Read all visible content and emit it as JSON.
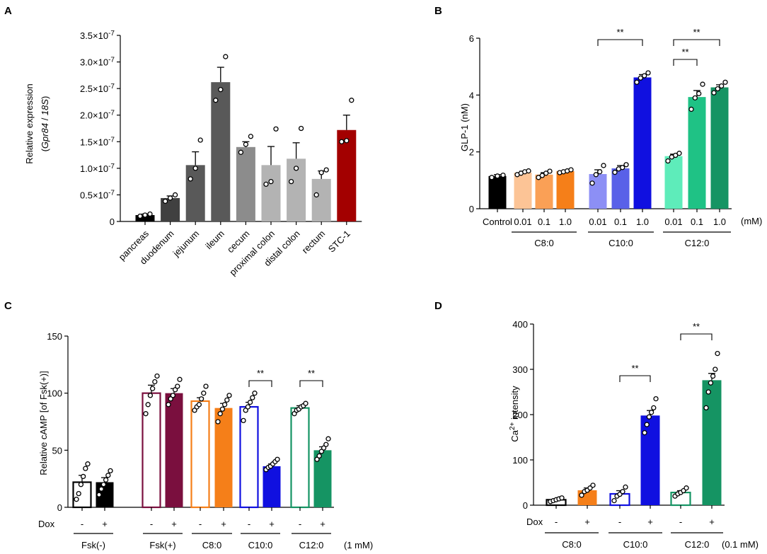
{
  "chart_data": [
    {
      "panel": "A",
      "type": "bar",
      "ylabel_line1": "Relative expression",
      "ylabel_line2_prefix": "(",
      "ylabel_gene": "Gpr84",
      "ylabel_sep": " / ",
      "ylabel_ref": "18S",
      "ylabel_line2_suffix": ")",
      "ylim": [
        0,
        3.5
      ],
      "yticks": [
        0,
        0.5,
        1.0,
        1.5,
        2.0,
        2.5,
        3.0,
        3.5
      ],
      "ytick_labels": [
        "0",
        "0.5×10",
        "1.0×10",
        "1.5×10",
        "2.0×10",
        "2.5×10",
        "3.0×10",
        "3.5×10"
      ],
      "ytick_exponent": "-7",
      "categories": [
        "pancreas",
        "duodenum",
        "jejunum",
        "ileum",
        "cecum",
        "proximal colon",
        "distal colon",
        "rectum",
        "STC-1"
      ],
      "values": [
        0.12,
        0.44,
        1.06,
        2.62,
        1.4,
        1.06,
        1.18,
        0.8,
        1.72
      ],
      "sem": [
        0.02,
        0.04,
        0.25,
        0.28,
        0.1,
        0.35,
        0.3,
        0.15,
        0.28
      ],
      "points": [
        [
          0.1,
          0.12,
          0.14
        ],
        [
          0.38,
          0.44,
          0.5
        ],
        [
          0.8,
          1.0,
          1.53
        ],
        [
          2.28,
          2.48,
          3.1
        ],
        [
          1.3,
          1.45,
          1.6
        ],
        [
          0.7,
          0.75,
          1.74
        ],
        [
          0.75,
          1.0,
          1.75
        ],
        [
          0.5,
          0.92,
          0.97
        ],
        [
          1.5,
          1.52,
          2.28
        ]
      ],
      "colors": [
        "#000000",
        "#404040",
        "#595959",
        "#595959",
        "#8c8c8c",
        "#b3b3b3",
        "#b3b3b3",
        "#b3b3b3",
        "#a30000"
      ]
    },
    {
      "panel": "B",
      "type": "bar",
      "ylabel": "GLP-1 (nM)",
      "ylim": [
        0,
        6
      ],
      "yticks": [
        0,
        2,
        4,
        6
      ],
      "ytick_labels": [
        "0",
        "2",
        "4",
        "6"
      ],
      "unit_note": "(mM)",
      "bars": [
        {
          "label": "Control",
          "value": 1.15,
          "sem": 0.05,
          "color": "#000000",
          "points": [
            1.1,
            1.15,
            1.18
          ]
        },
        {
          "label": "0.01",
          "value": 1.27,
          "sem": 0.05,
          "color": "#fcc496",
          "points": [
            1.2,
            1.25,
            1.3,
            1.33
          ]
        },
        {
          "label": "0.1",
          "value": 1.2,
          "sem": 0.07,
          "color": "#faa056",
          "points": [
            1.1,
            1.17,
            1.25,
            1.32
          ]
        },
        {
          "label": "1.0",
          "value": 1.32,
          "sem": 0.04,
          "color": "#f57f19",
          "points": [
            1.27,
            1.3,
            1.33,
            1.37
          ]
        },
        {
          "label": "0.01",
          "value": 1.22,
          "sem": 0.15,
          "color": "#8c8ff5",
          "points": [
            0.9,
            1.2,
            1.3,
            1.52
          ]
        },
        {
          "label": "0.1",
          "value": 1.42,
          "sem": 0.1,
          "color": "#5961e8",
          "points": [
            1.28,
            1.4,
            1.45,
            1.55
          ]
        },
        {
          "label": "1.0",
          "value": 4.62,
          "sem": 0.1,
          "color": "#1010e0",
          "points": [
            4.45,
            4.6,
            4.68,
            4.78
          ]
        },
        {
          "label": "0.01",
          "value": 1.85,
          "sem": 0.07,
          "color": "#5eecba",
          "points": [
            1.68,
            1.82,
            1.88,
            1.95
          ]
        },
        {
          "label": "0.1",
          "value": 3.93,
          "sem": 0.23,
          "color": "#1fc285",
          "points": [
            3.5,
            3.9,
            4.05,
            4.38
          ]
        },
        {
          "label": "1.0",
          "value": 4.27,
          "sem": 0.09,
          "color": "#159463",
          "points": [
            4.08,
            4.22,
            4.32,
            4.45
          ]
        }
      ],
      "groups": [
        {
          "label": "C8:0"
        },
        {
          "label": "C10:0"
        },
        {
          "label": "C12:0"
        }
      ],
      "significance": [
        {
          "label": "**",
          "from": 4,
          "to": 6
        },
        {
          "label": "**",
          "from": 7,
          "to": 9
        },
        {
          "label": "**",
          "from": 7,
          "to": 8
        }
      ]
    },
    {
      "panel": "C",
      "type": "bar",
      "ylabel": "Relative cAMP [of Fsk(+)]",
      "ylim": [
        0,
        150
      ],
      "yticks": [
        0,
        50,
        100,
        150
      ],
      "ytick_labels": [
        "0",
        "50",
        "100",
        "150"
      ],
      "dox_label": "Dox",
      "dox_states": [
        "-",
        "+",
        "-",
        "+",
        "-",
        "+",
        "-",
        "+",
        "-",
        "+"
      ],
      "unit_note": "(1 mM)",
      "bars": [
        {
          "group": "Fsk(-)",
          "dox": "-",
          "value": 22,
          "sem": 6,
          "filled": false,
          "color": "#000000",
          "points": [
            7,
            12,
            20,
            27,
            34,
            38
          ]
        },
        {
          "group": "Fsk(-)",
          "dox": "+",
          "value": 22,
          "sem": 4,
          "filled": true,
          "color": "#000000",
          "points": [
            11,
            16,
            20,
            24,
            28,
            32
          ]
        },
        {
          "group": "Fsk(+)",
          "dox": "-",
          "value": 100,
          "sem": 7,
          "filled": false,
          "color": "#7a0f3e",
          "points": [
            82,
            90,
            98,
            104,
            110,
            115
          ]
        },
        {
          "group": "Fsk(+)",
          "dox": "+",
          "value": 100,
          "sem": 4,
          "filled": true,
          "color": "#7a0f3e",
          "points": [
            90,
            95,
            98,
            103,
            106,
            112
          ]
        },
        {
          "group": "C8:0",
          "dox": "-",
          "value": 93,
          "sem": 3,
          "filled": false,
          "color": "#f57f19",
          "points": [
            85,
            88,
            90,
            95,
            100,
            106
          ]
        },
        {
          "group": "C8:0",
          "dox": "+",
          "value": 87,
          "sem": 4,
          "filled": true,
          "color": "#f57f19",
          "points": [
            75,
            82,
            86,
            90,
            94,
            98
          ]
        },
        {
          "group": "C10:0",
          "dox": "-",
          "value": 88,
          "sem": 4,
          "filled": false,
          "color": "#1010e0",
          "points": [
            76,
            85,
            88,
            92,
            96,
            100
          ]
        },
        {
          "group": "C10:0",
          "dox": "+",
          "value": 36,
          "sem": 2,
          "filled": true,
          "color": "#1010e0",
          "points": [
            33,
            35,
            36,
            38,
            40,
            42
          ]
        },
        {
          "group": "C12:0",
          "dox": "-",
          "value": 87,
          "sem": 2,
          "filled": false,
          "color": "#159463",
          "points": [
            82,
            85,
            86,
            88,
            89,
            91
          ]
        },
        {
          "group": "C12:0",
          "dox": "+",
          "value": 50,
          "sem": 3,
          "filled": true,
          "color": "#159463",
          "points": [
            42,
            45,
            49,
            52,
            55,
            60
          ]
        }
      ],
      "groups": [
        {
          "label": "Fsk(-)"
        },
        {
          "label": "Fsk(+)"
        },
        {
          "label": "C8:0"
        },
        {
          "label": "C10:0"
        },
        {
          "label": "C12:0"
        }
      ],
      "significance": [
        {
          "label": "**",
          "from": 6,
          "to": 7
        },
        {
          "label": "**",
          "from": 8,
          "to": 9
        }
      ]
    },
    {
      "panel": "D",
      "type": "bar",
      "ylabel_prefix": "Ca",
      "ylabel_sup": "2+",
      "ylabel_suffix": " intensity",
      "ylim": [
        0,
        400
      ],
      "yticks": [
        0,
        100,
        200,
        300,
        400
      ],
      "ytick_labels": [
        "0",
        "100",
        "200",
        "300",
        "400"
      ],
      "dox_label": "Dox",
      "dox_states": [
        "-",
        "+",
        "-",
        "+",
        "-",
        "+"
      ],
      "unit_note": "(0.1 mM)",
      "bars": [
        {
          "group": "C8:0",
          "dox": "-",
          "value": 12,
          "sem": 2,
          "filled": false,
          "color": "#000000",
          "points": [
            8,
            10,
            12,
            14,
            16
          ]
        },
        {
          "group": "C8:0",
          "dox": "+",
          "value": 33,
          "sem": 5,
          "filled": true,
          "color": "#f57f19",
          "points": [
            22,
            30,
            33,
            38,
            44
          ]
        },
        {
          "group": "C10:0",
          "dox": "-",
          "value": 25,
          "sem": 7,
          "filled": false,
          "color": "#1010e0",
          "points": [
            10,
            20,
            24,
            30,
            40
          ]
        },
        {
          "group": "C10:0",
          "dox": "+",
          "value": 198,
          "sem": 11,
          "filled": true,
          "color": "#1010e0",
          "points": [
            160,
            178,
            195,
            205,
            215,
            235
          ]
        },
        {
          "group": "C12:0",
          "dox": "-",
          "value": 28,
          "sem": 4,
          "filled": false,
          "color": "#159463",
          "points": [
            20,
            25,
            28,
            32,
            38
          ]
        },
        {
          "group": "C12:0",
          "dox": "+",
          "value": 276,
          "sem": 15,
          "filled": true,
          "color": "#159463",
          "points": [
            215,
            250,
            270,
            285,
            300,
            335
          ]
        }
      ],
      "groups": [
        {
          "label": "C8:0"
        },
        {
          "label": "C10:0"
        },
        {
          "label": "C12:0"
        }
      ],
      "significance": [
        {
          "label": "**",
          "from": 2,
          "to": 3
        },
        {
          "label": "**",
          "from": 4,
          "to": 5
        }
      ]
    }
  ]
}
